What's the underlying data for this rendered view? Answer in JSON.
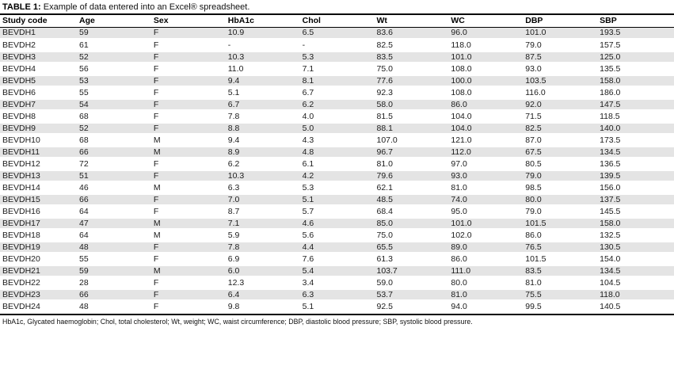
{
  "caption": {
    "label": "TABLE 1:",
    "text": "Example of data entered into an Excel® spreadsheet."
  },
  "table": {
    "columns": [
      "Study code",
      "Age",
      "Sex",
      "HbA1c",
      "Chol",
      "Wt",
      "WC",
      "DBP",
      "SBP"
    ],
    "rows": [
      [
        "BEVDH1",
        "59",
        "F",
        "10.9",
        "6.5",
        "83.6",
        "96.0",
        "101.0",
        "193.5"
      ],
      [
        "BEVDH2",
        "61",
        "F",
        "-",
        "-",
        "82.5",
        "118.0",
        "79.0",
        "157.5"
      ],
      [
        "BEVDH3",
        "52",
        "F",
        "10.3",
        "5.3",
        "83.5",
        "101.0",
        "87.5",
        "125.0"
      ],
      [
        "BEVDH4",
        "56",
        "F",
        "11.0",
        "7.1",
        "75.0",
        "108.0",
        "93.0",
        "135.5"
      ],
      [
        "BEVDH5",
        "53",
        "F",
        "9.4",
        "8.1",
        "77.6",
        "100.0",
        "103.5",
        "158.0"
      ],
      [
        "BEVDH6",
        "55",
        "F",
        "5.1",
        "6.7",
        "92.3",
        "108.0",
        "116.0",
        "186.0"
      ],
      [
        "BEVDH7",
        "54",
        "F",
        "6.7",
        "6.2",
        "58.0",
        "86.0",
        "92.0",
        "147.5"
      ],
      [
        "BEVDH8",
        "68",
        "F",
        "7.8",
        "4.0",
        "81.5",
        "104.0",
        "71.5",
        "118.5"
      ],
      [
        "BEVDH9",
        "52",
        "F",
        "8.8",
        "5.0",
        "88.1",
        "104.0",
        "82.5",
        "140.0"
      ],
      [
        "BEVDH10",
        "68",
        "M",
        "9.4",
        "4.3",
        "107.0",
        "121.0",
        "87.0",
        "173.5"
      ],
      [
        "BEVDH11",
        "66",
        "M",
        "8.9",
        "4.8",
        "96.7",
        "112.0",
        "67.5",
        "134.5"
      ],
      [
        "BEVDH12",
        "72",
        "F",
        "6.2",
        "6.1",
        "81.0",
        "97.0",
        "80.5",
        "136.5"
      ],
      [
        "BEVDH13",
        "51",
        "F",
        "10.3",
        "4.2",
        "79.6",
        "93.0",
        "79.0",
        "139.5"
      ],
      [
        "BEVDH14",
        "46",
        "M",
        "6.3",
        "5.3",
        "62.1",
        "81.0",
        "98.5",
        "156.0"
      ],
      [
        "BEVDH15",
        "66",
        "F",
        "7.0",
        "5.1",
        "48.5",
        "74.0",
        "80.0",
        "137.5"
      ],
      [
        "BEVDH16",
        "64",
        "F",
        "8.7",
        "5.7",
        "68.4",
        "95.0",
        "79.0",
        "145.5"
      ],
      [
        "BEVDH17",
        "47",
        "M",
        "7.1",
        "4.6",
        "85.0",
        "101.0",
        "101.5",
        "158.0"
      ],
      [
        "BEVDH18",
        "64",
        "M",
        "5.9",
        "5.6",
        "75.0",
        "102.0",
        "86.0",
        "132.5"
      ],
      [
        "BEVDH19",
        "48",
        "F",
        "7.8",
        "4.4",
        "65.5",
        "89.0",
        "76.5",
        "130.5"
      ],
      [
        "BEVDH20",
        "55",
        "F",
        "6.9",
        "7.6",
        "61.3",
        "86.0",
        "101.5",
        "154.0"
      ],
      [
        "BEVDH21",
        "59",
        "M",
        "6.0",
        "5.4",
        "103.7",
        "111.0",
        "83.5",
        "134.5"
      ],
      [
        "BEVDH22",
        "28",
        "F",
        "12.3",
        "3.4",
        "59.0",
        "80.0",
        "81.0",
        "104.5"
      ],
      [
        "BEVDH23",
        "66",
        "F",
        "6.4",
        "6.3",
        "53.7",
        "81.0",
        "75.5",
        "118.0"
      ],
      [
        "BEVDH24",
        "48",
        "F",
        "9.8",
        "5.1",
        "92.5",
        "94.0",
        "99.5",
        "140.5"
      ]
    ]
  },
  "footnote": "HbA1c, Glycated haemoglobin; Chol, total cholesterol; Wt, weight; WC, waist circumference; DBP, diastolic blood pressure; SBP, systolic blood pressure.",
  "colors": {
    "row_stripe": "#e4e4e4",
    "rule": "#000000",
    "text": "#1c1c1c"
  }
}
